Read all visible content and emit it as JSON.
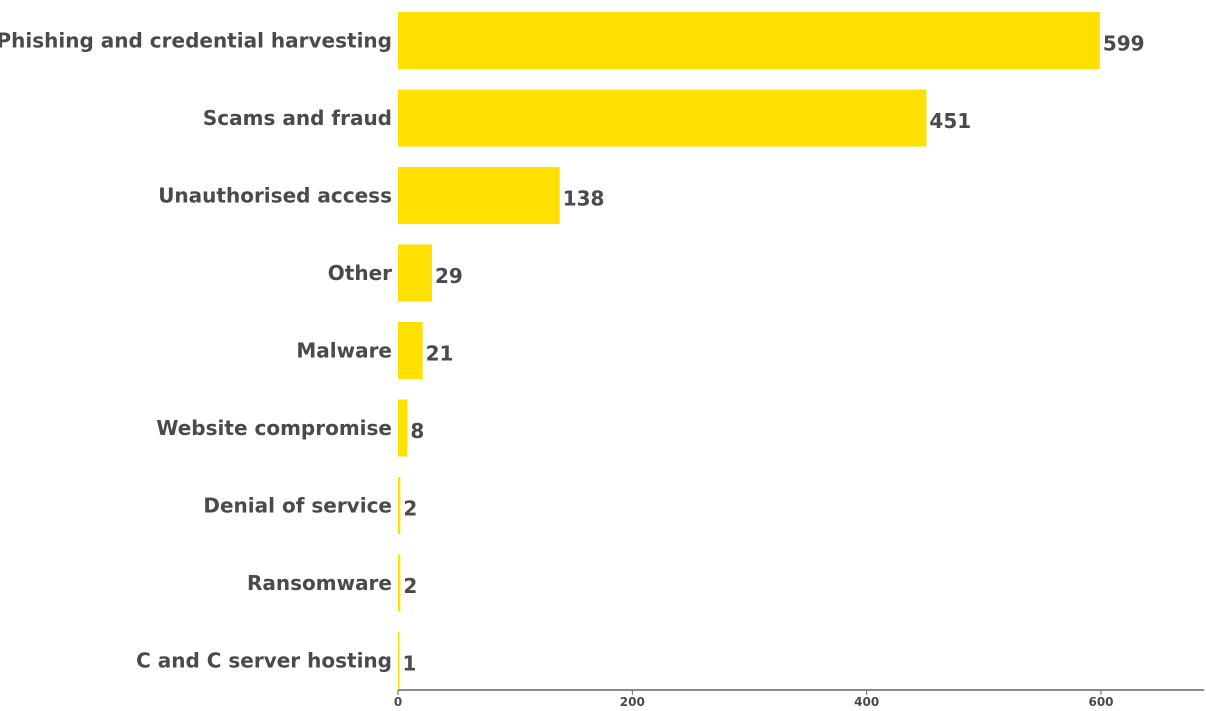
{
  "chart_data": {
    "type": "bar",
    "orientation": "horizontal",
    "categories": [
      "Phishing and credential harvesting",
      "Scams and fraud",
      "Unauthorised access",
      "Other",
      "Malware",
      "Website compromise",
      "Denial of service",
      "Ransomware",
      "C and C server hosting"
    ],
    "values": [
      599,
      451,
      138,
      29,
      21,
      8,
      2,
      2,
      1
    ],
    "title": "",
    "xlabel": "",
    "ylabel": "",
    "xlim": [
      0,
      690
    ],
    "x_ticks": [
      0,
      200,
      400,
      600
    ],
    "grid": false,
    "legend": "none",
    "bar_color": "#ffe000",
    "axis_color": "#666666",
    "text_color": "#4a4a4a"
  }
}
